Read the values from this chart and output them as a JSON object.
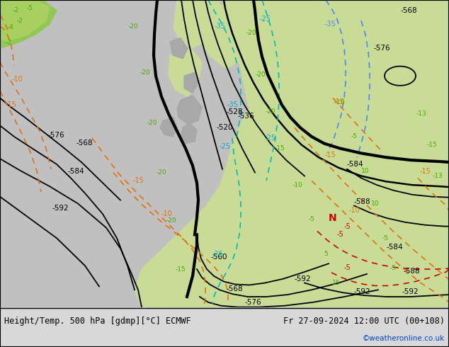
{
  "title_left": "Height/Temp. 500 hPa [gdmp][°C] ECMWF",
  "title_right": "Fr 27-09-2024 12:00 UTC (00+108)",
  "watermark": "©weatheronline.co.uk",
  "figsize": [
    6.34,
    4.9
  ],
  "dpi": 100,
  "bg_grey": "#c8c8c8",
  "bg_light_green": "#c8dc96",
  "bg_dark_green": "#a0c050",
  "bg_pale_grey": "#b4b4b4",
  "bottom_bar": "#e0e0e0"
}
